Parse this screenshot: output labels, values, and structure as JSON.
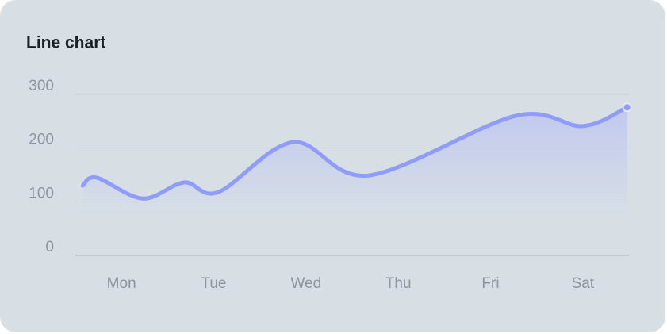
{
  "chart_data": {
    "type": "line",
    "title": "Line chart",
    "x": [
      -0.42,
      -0.27,
      0.23,
      0.68,
      1.05,
      1.86,
      2.68,
      4.27,
      5.0,
      5.48
    ],
    "series": [
      {
        "color": "#8f9cfb",
        "values": [
          130,
          145,
          106,
          136,
          118,
          211,
          149,
          260,
          241,
          276
        ]
      }
    ],
    "xlim": [
      -0.5,
      5.5
    ],
    "xticks": [
      {
        "value": 0,
        "label": "Mon"
      },
      {
        "value": 1,
        "label": "Tue"
      },
      {
        "value": 2,
        "label": "Wed"
      },
      {
        "value": 3,
        "label": "Thu"
      },
      {
        "value": 4,
        "label": "Fri"
      },
      {
        "value": 5,
        "label": "Sat"
      }
    ],
    "ylim": [
      0,
      300
    ],
    "yticks": [
      0,
      100,
      200,
      300
    ],
    "grid": true
  }
}
